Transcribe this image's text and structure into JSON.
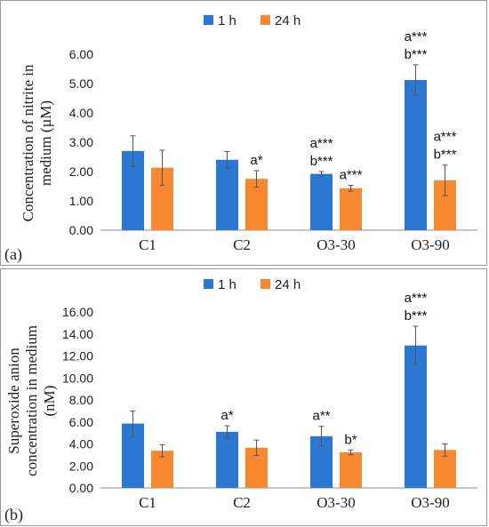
{
  "chart_data": [
    {
      "type": "bar",
      "panel_label": "(a)",
      "categories": [
        "C1",
        "C2",
        "O3-30",
        "O3-90"
      ],
      "series": [
        {
          "name": "1 h",
          "values": [
            2.7,
            2.4,
            1.92,
            5.12
          ],
          "errors": [
            0.52,
            0.28,
            0.08,
            0.52
          ]
        },
        {
          "name": "24 h",
          "values": [
            2.13,
            1.75,
            1.43,
            1.7
          ],
          "errors": [
            0.6,
            0.28,
            0.1,
            0.52
          ]
        }
      ],
      "ylabel_lines": [
        "Concentration of nitrite in",
        "medium  (µM)"
      ],
      "ylim": [
        0,
        6
      ],
      "yticks": [
        "0.00",
        "1.00",
        "2.00",
        "3.00",
        "4.00",
        "5.00",
        "6.00"
      ],
      "legend_position": "top",
      "grid": false,
      "annotations": [
        {
          "category": "C2",
          "series": "24 h",
          "lines": [
            "a*"
          ]
        },
        {
          "category": "O3-30",
          "series": "1 h",
          "lines": [
            "a***",
            "b***"
          ]
        },
        {
          "category": "O3-30",
          "series": "24 h",
          "lines": [
            "a***"
          ]
        },
        {
          "category": "O3-90",
          "series": "1 h",
          "lines": [
            "a***",
            "b***"
          ]
        },
        {
          "category": "O3-90",
          "series": "24 h",
          "lines": [
            "a***",
            "b***"
          ]
        }
      ]
    },
    {
      "type": "bar",
      "panel_label": "(b)",
      "categories": [
        "C1",
        "C2",
        "O3-30",
        "O3-90"
      ],
      "series": [
        {
          "name": "1 h",
          "values": [
            5.85,
            5.1,
            4.7,
            12.95
          ],
          "errors": [
            1.15,
            0.55,
            0.9,
            1.75
          ]
        },
        {
          "name": "24 h",
          "values": [
            3.38,
            3.65,
            3.23,
            3.45
          ],
          "errors": [
            0.55,
            0.7,
            0.22,
            0.55
          ]
        }
      ],
      "ylabel_lines": [
        "Superoxide anion",
        "concentration in medium",
        "(nM)"
      ],
      "ylim": [
        0,
        16
      ],
      "yticks": [
        "0.00",
        "2.00",
        "4.00",
        "6.00",
        "8.00",
        "10.00",
        "12.00",
        "14.00",
        "16.00"
      ],
      "legend_position": "top",
      "grid": false,
      "annotations": [
        {
          "category": "C2",
          "series": "1 h",
          "lines": [
            "a*"
          ]
        },
        {
          "category": "O3-30",
          "series": "1 h",
          "lines": [
            "a**"
          ]
        },
        {
          "category": "O3-30",
          "series": "24 h",
          "lines": [
            "b*"
          ]
        },
        {
          "category": "O3-90",
          "series": "1 h",
          "lines": [
            "a***",
            "b***"
          ]
        }
      ]
    }
  ],
  "colors": {
    "series_1h": "#2a78d2",
    "series_24h": "#f7882f",
    "axis": "#8c8c8c",
    "error_bar": "#555555"
  }
}
